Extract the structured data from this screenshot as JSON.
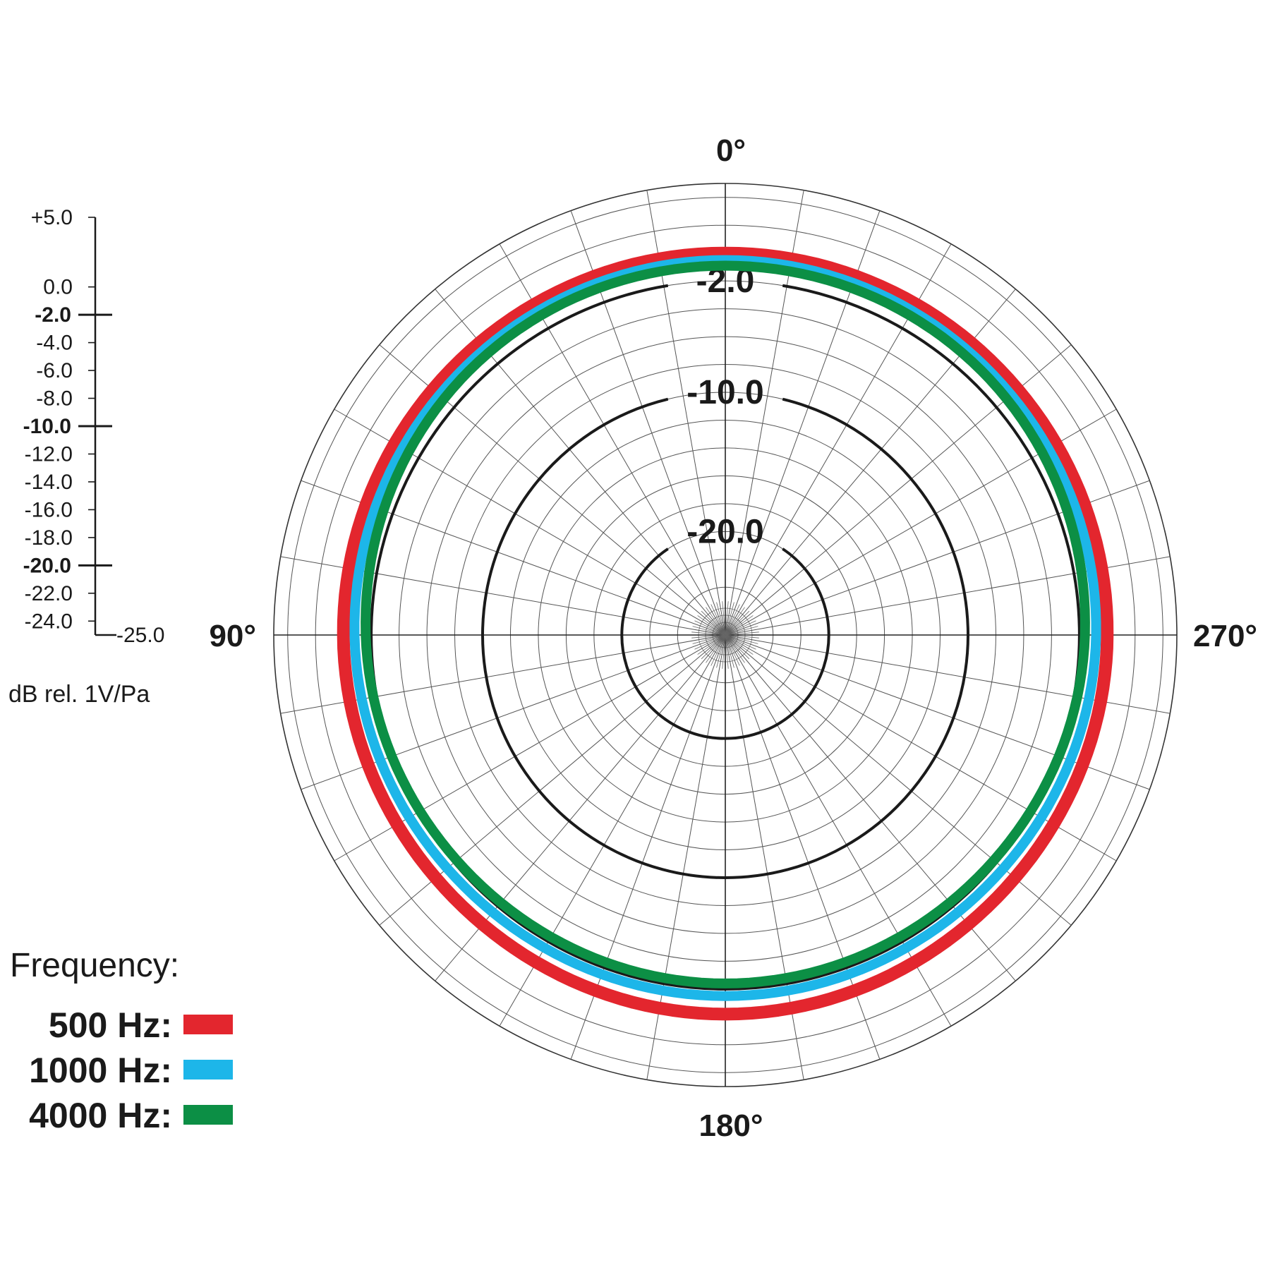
{
  "chart_data": {
    "type": "polar",
    "angle_labels": [
      {
        "angle": 0,
        "text": "0°"
      },
      {
        "angle": 90,
        "text": "90°"
      },
      {
        "angle": 180,
        "text": "180°"
      },
      {
        "angle": 270,
        "text": "270°"
      }
    ],
    "angle_step_deg": 10,
    "radial_range_db": [
      -25,
      5
    ],
    "ring_step_db": 2,
    "highlight_rings": [
      {
        "db": -2,
        "label": "-2.0"
      },
      {
        "db": -10,
        "label": "-10.0"
      },
      {
        "db": -20,
        "label": "-20.0"
      }
    ],
    "scale": {
      "ticks": [
        {
          "db": 5,
          "label": "+5.0",
          "bold": false
        },
        {
          "db": 0,
          "label": "0.0",
          "bold": false
        },
        {
          "db": -2,
          "label": "-2.0",
          "bold": true
        },
        {
          "db": -4,
          "label": "-4.0",
          "bold": false
        },
        {
          "db": -6,
          "label": "-6.0",
          "bold": false
        },
        {
          "db": -8,
          "label": "-8.0",
          "bold": false
        },
        {
          "db": -10,
          "label": "-10.0",
          "bold": true
        },
        {
          "db": -12,
          "label": "-12.0",
          "bold": false
        },
        {
          "db": -14,
          "label": "-14.0",
          "bold": false
        },
        {
          "db": -16,
          "label": "-16.0",
          "bold": false
        },
        {
          "db": -18,
          "label": "-18.0",
          "bold": false
        },
        {
          "db": -20,
          "label": "-20.0",
          "bold": true
        },
        {
          "db": -22,
          "label": "-22.0",
          "bold": false
        },
        {
          "db": -24,
          "label": "-24.0",
          "bold": false
        },
        {
          "db": -25,
          "label": "-25.0",
          "bold": false
        }
      ],
      "unit": "dB rel. 1V/Pa"
    },
    "legend_title": "Frequency:",
    "series": [
      {
        "name": "500 Hz:",
        "color": "#e3262e",
        "angles": [
          0,
          45,
          90,
          135,
          180,
          225,
          270,
          315
        ],
        "values": [
          0,
          0,
          0,
          -0.3,
          -0.2,
          -0.3,
          0,
          0
        ]
      },
      {
        "name": "1000 Hz:",
        "color": "#1db6e9",
        "angles": [
          0,
          45,
          90,
          135,
          180,
          225,
          270,
          315
        ],
        "values": [
          -0.3,
          -0.4,
          -0.6,
          -1.2,
          -1.3,
          -1.2,
          -0.6,
          -0.4
        ]
      },
      {
        "name": "4000 Hz:",
        "color": "#0c8f45",
        "angles": [
          0,
          45,
          90,
          135,
          180,
          225,
          270,
          315
        ],
        "values": [
          -0.5,
          -0.6,
          -1.2,
          -1.9,
          -2.0,
          -1.9,
          -1.2,
          -0.6
        ]
      }
    ]
  }
}
